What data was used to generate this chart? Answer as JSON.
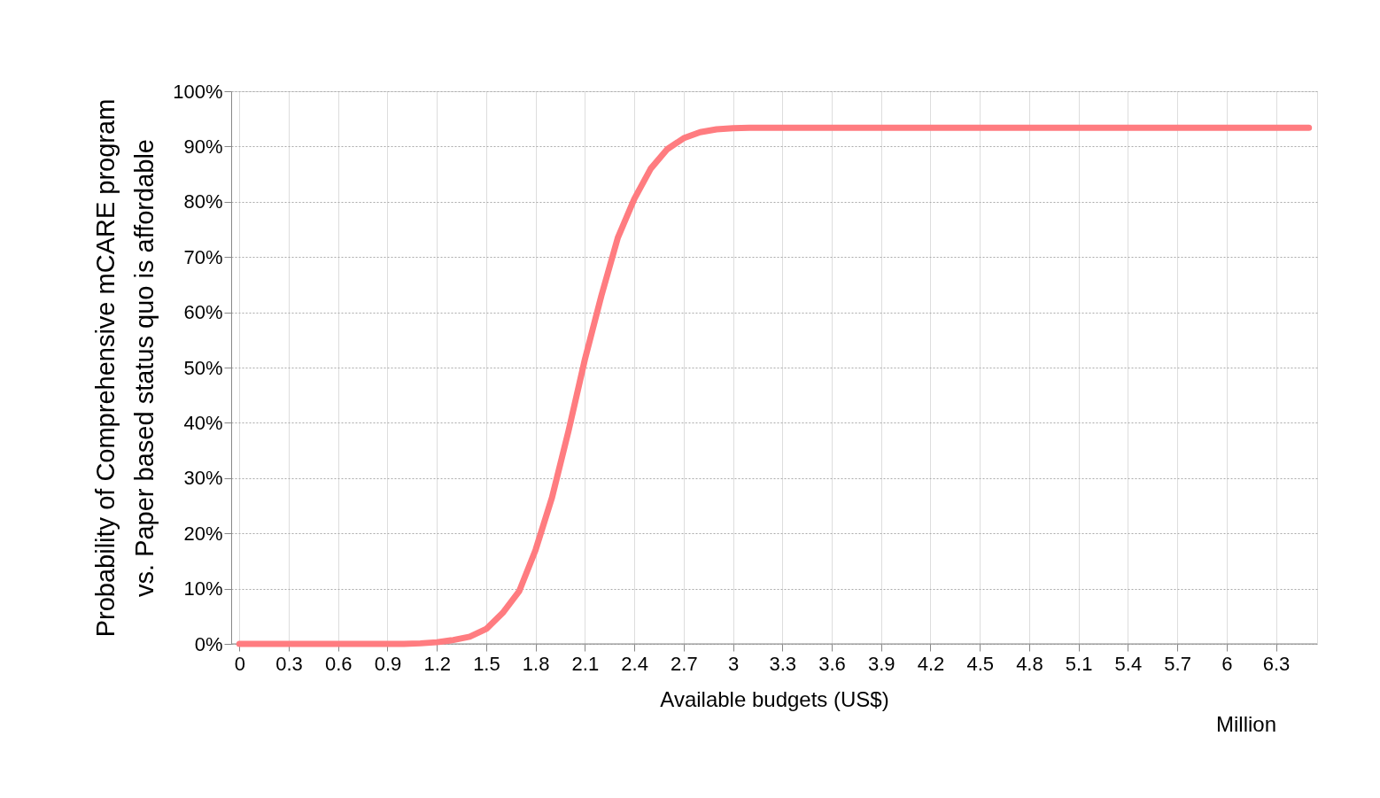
{
  "chart_data": {
    "type": "line",
    "xlabel": "Available budgets (US$)",
    "ylabel": "Probability of Comprehensive mCARE program\nvs. Paper based status quo is affordable",
    "annotations": [
      "Million"
    ],
    "x": [
      0,
      0.1,
      0.2,
      0.3,
      0.4,
      0.5,
      0.6,
      0.7,
      0.8,
      0.9,
      1.0,
      1.1,
      1.2,
      1.3,
      1.4,
      1.5,
      1.6,
      1.7,
      1.8,
      1.9,
      2.0,
      2.1,
      2.2,
      2.3,
      2.4,
      2.5,
      2.6,
      2.7,
      2.8,
      2.9,
      3.0,
      3.1,
      3.2,
      3.3,
      3.4,
      3.5,
      3.6,
      3.7,
      3.8,
      3.9,
      4.0,
      4.1,
      4.2,
      4.3,
      4.4,
      4.5,
      4.6,
      4.7,
      4.8,
      4.9,
      5.0,
      5.1,
      5.2,
      5.3,
      5.4,
      5.5,
      5.6,
      5.7,
      5.8,
      5.9,
      6.0,
      6.1,
      6.2,
      6.3,
      6.4,
      6.5
    ],
    "series": [
      {
        "color": "#ff7c80",
        "values": [
          0,
          0,
          0,
          0,
          0,
          0,
          0,
          0,
          0,
          0,
          0,
          0.1,
          0.3,
          0.7,
          1.3,
          2.7,
          5.6,
          9.5,
          17,
          26.5,
          38.5,
          51.5,
          63,
          73.5,
          80.5,
          86,
          89.5,
          91.5,
          92.6,
          93.1,
          93.3,
          93.4,
          93.4,
          93.4,
          93.4,
          93.4,
          93.4,
          93.4,
          93.4,
          93.4,
          93.4,
          93.4,
          93.4,
          93.4,
          93.4,
          93.4,
          93.4,
          93.4,
          93.4,
          93.4,
          93.4,
          93.4,
          93.4,
          93.4,
          93.4,
          93.4,
          93.4,
          93.4,
          93.4,
          93.4,
          93.4,
          93.4,
          93.4,
          93.4,
          93.4,
          93.4
        ]
      }
    ],
    "xlim": [
      -0.05,
      6.55
    ],
    "xticks": [
      0,
      0.3,
      0.6,
      0.9,
      1.2,
      1.5,
      1.8,
      2.1,
      2.4,
      2.7,
      3,
      3.3,
      3.6,
      3.9,
      4.2,
      4.5,
      4.8,
      5.1,
      5.4,
      5.7,
      6,
      6.3
    ],
    "ylim": [
      0,
      100
    ],
    "yticks": [
      {
        "value": 0,
        "label": "0%"
      },
      {
        "value": 10,
        "label": "10%"
      },
      {
        "value": 20,
        "label": "20%"
      },
      {
        "value": 30,
        "label": "30%"
      },
      {
        "value": 40,
        "label": "40%"
      },
      {
        "value": 50,
        "label": "50%"
      },
      {
        "value": 60,
        "label": "60%"
      },
      {
        "value": 70,
        "label": "70%"
      },
      {
        "value": 80,
        "label": "80%"
      },
      {
        "value": 90,
        "label": "90%"
      },
      {
        "value": 100,
        "label": "100%"
      }
    ],
    "grid": true,
    "legend": false,
    "marker": "none",
    "line_style": "solid"
  }
}
